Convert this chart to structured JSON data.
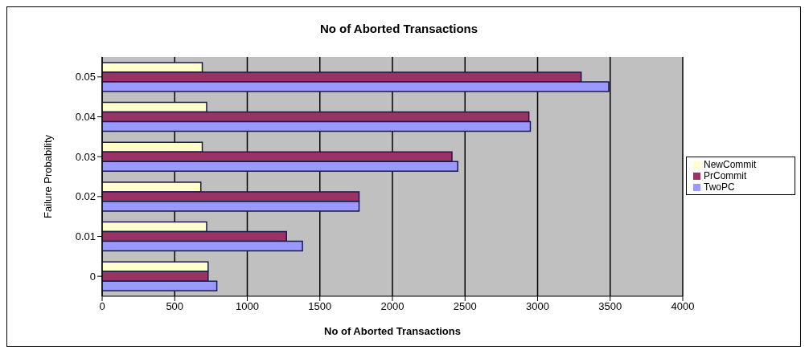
{
  "chart_data": {
    "type": "bar",
    "orientation": "horizontal",
    "title": "No of Aborted Transactions",
    "xlabel": "No of Aborted Transactions",
    "ylabel": "Failure Probability",
    "categories": [
      "0.05",
      "0.04",
      "0.03",
      "0.02",
      "0.01",
      "0"
    ],
    "series": [
      {
        "name": "NewCommit",
        "color": "#ffffcc",
        "values": [
          690,
          720,
          690,
          680,
          720,
          730
        ]
      },
      {
        "name": "PrCommit",
        "color": "#993366",
        "values": [
          3300,
          2940,
          2410,
          1770,
          1270,
          730
        ]
      },
      {
        "name": "TwoPC",
        "color": "#9999ff",
        "values": [
          3490,
          2950,
          2450,
          1770,
          1380,
          790
        ]
      }
    ],
    "xlim": [
      0,
      4000
    ],
    "xticks": [
      0,
      500,
      1000,
      1500,
      2000,
      2500,
      3000,
      3500,
      4000
    ],
    "grid": "x",
    "legend": "right"
  }
}
